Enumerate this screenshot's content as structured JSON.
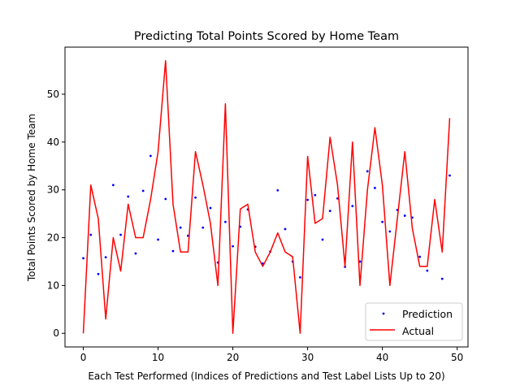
{
  "chart_data": {
    "type": "line",
    "title": "Predicting Total Points Scored by Home Team",
    "xlabel": "Each Test Performed (Indices of Predictions and Test Label Lists Up to 20)",
    "ylabel": "Total Points Scored by Home Team",
    "xlim": [
      -2.45,
      51.45
    ],
    "ylim": [
      -2.85,
      59.85
    ],
    "x_ticks": [
      0,
      10,
      20,
      30,
      40,
      50
    ],
    "y_ticks": [
      0,
      10,
      20,
      30,
      40,
      50
    ],
    "legend_position": "lower-right",
    "x": [
      0,
      1,
      2,
      3,
      4,
      5,
      6,
      7,
      8,
      9,
      10,
      11,
      12,
      13,
      14,
      15,
      16,
      17,
      18,
      19,
      20,
      21,
      22,
      23,
      24,
      25,
      26,
      27,
      28,
      29,
      30,
      31,
      32,
      33,
      34,
      35,
      36,
      37,
      38,
      39,
      40,
      41,
      42,
      43,
      44,
      45,
      46,
      47,
      48,
      49
    ],
    "series": [
      {
        "name": "Prediction",
        "style": "points",
        "color": "#0000ff",
        "values": [
          15.7,
          20.6,
          12.4,
          15.9,
          31.0,
          20.6,
          28.6,
          16.7,
          29.8,
          37.1,
          19.6,
          28.1,
          17.2,
          22.1,
          20.4,
          28.4,
          22.1,
          26.2,
          14.8,
          23.3,
          18.2,
          22.3,
          25.9,
          18.1,
          14.6,
          17.1,
          29.9,
          21.8,
          15.0,
          11.7,
          27.9,
          28.9,
          19.6,
          25.6,
          28.2,
          13.9,
          26.6,
          15.0,
          33.9,
          30.4,
          23.3,
          21.3,
          25.8,
          24.6,
          24.2,
          16.0,
          13.1,
          null,
          11.4,
          33.0
        ]
      },
      {
        "name": "Actual",
        "style": "line",
        "color": "#ff0000",
        "values": [
          0,
          31,
          24,
          3,
          20,
          13,
          27,
          20,
          20,
          28,
          38,
          57,
          27,
          17,
          17,
          38,
          31,
          23,
          10,
          48,
          0,
          26,
          27,
          17,
          14,
          17,
          21,
          17,
          16,
          0,
          37,
          23,
          24,
          41,
          31,
          14,
          40,
          10,
          30,
          43,
          31,
          10,
          24,
          38,
          22,
          14,
          14,
          28,
          17,
          45
        ]
      }
    ]
  }
}
